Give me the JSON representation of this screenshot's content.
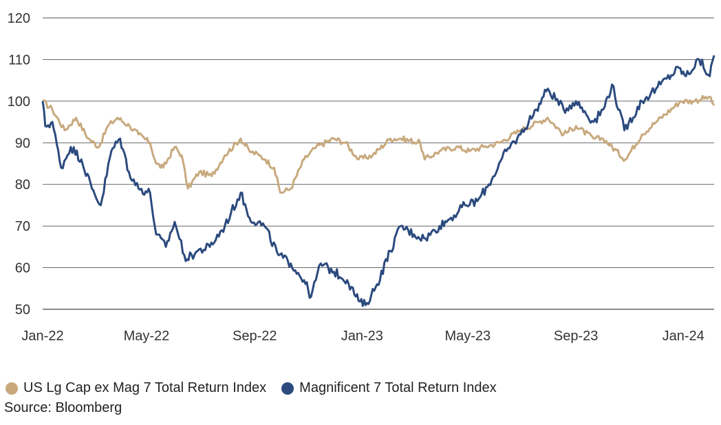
{
  "chart_data": {
    "type": "line",
    "title": "",
    "xlabel": "",
    "ylabel": "",
    "ylim": [
      50,
      120
    ],
    "yticks": [
      "120",
      "110",
      "100",
      "90",
      "80",
      "70",
      "60",
      "50"
    ],
    "xticks": [
      "Jan-22",
      "May-22",
      "Sep-22",
      "Jan-23",
      "May-23",
      "Sep-23",
      "Jan-24"
    ],
    "grid": "horizontal",
    "legend": "bottom-left",
    "series": [
      {
        "name": "US Lg Cap ex Mag 7 Total Return Index",
        "color": "#c8a97e",
        "points": [
          [
            "2022-01-03",
            100
          ],
          [
            "2022-01-14",
            98
          ],
          [
            "2022-01-28",
            93
          ],
          [
            "2022-02-10",
            96
          ],
          [
            "2022-02-24",
            91
          ],
          [
            "2022-03-08",
            89
          ],
          [
            "2022-03-18",
            94
          ],
          [
            "2022-03-29",
            96
          ],
          [
            "2022-04-12",
            94
          ],
          [
            "2022-04-22",
            92
          ],
          [
            "2022-05-05",
            90
          ],
          [
            "2022-05-12",
            85
          ],
          [
            "2022-05-20",
            84
          ],
          [
            "2022-06-02",
            89
          ],
          [
            "2022-06-10",
            87
          ],
          [
            "2022-06-17",
            79
          ],
          [
            "2022-06-30",
            83
          ],
          [
            "2022-07-14",
            82
          ],
          [
            "2022-07-29",
            87
          ],
          [
            "2022-08-16",
            91
          ],
          [
            "2022-08-26",
            88
          ],
          [
            "2022-09-06",
            87
          ],
          [
            "2022-09-13",
            86
          ],
          [
            "2022-09-23",
            84
          ],
          [
            "2022-09-30",
            78
          ],
          [
            "2022-10-12",
            79
          ],
          [
            "2022-10-27",
            86
          ],
          [
            "2022-11-10",
            89
          ],
          [
            "2022-11-30",
            91
          ],
          [
            "2022-12-13",
            90
          ],
          [
            "2022-12-28",
            86
          ],
          [
            "2023-01-13",
            87
          ],
          [
            "2023-02-02",
            91
          ],
          [
            "2023-02-14",
            91
          ],
          [
            "2023-03-08",
            90
          ],
          [
            "2023-03-13",
            86
          ],
          [
            "2023-03-30",
            88
          ],
          [
            "2023-04-18",
            89
          ],
          [
            "2023-05-03",
            88
          ],
          [
            "2023-05-19",
            89
          ],
          [
            "2023-06-06",
            90
          ],
          [
            "2023-06-30",
            93
          ],
          [
            "2023-07-21",
            95
          ],
          [
            "2023-07-31",
            96
          ],
          [
            "2023-08-18",
            92
          ],
          [
            "2023-09-01",
            94
          ],
          [
            "2023-09-21",
            91
          ],
          [
            "2023-10-02",
            91
          ],
          [
            "2023-10-27",
            86
          ],
          [
            "2023-11-15",
            92
          ],
          [
            "2023-12-01",
            95
          ],
          [
            "2023-12-29",
            100
          ],
          [
            "2024-01-12",
            100
          ],
          [
            "2024-01-30",
            101
          ],
          [
            "2024-02-05",
            99
          ]
        ]
      },
      {
        "name": "Magnificent 7 Total Return Index",
        "color": "#2b4a7e",
        "points": [
          [
            "2022-01-03",
            100
          ],
          [
            "2022-01-06",
            94
          ],
          [
            "2022-01-14",
            95
          ],
          [
            "2022-01-24",
            84
          ],
          [
            "2022-02-04",
            89
          ],
          [
            "2022-02-16",
            86
          ],
          [
            "2022-02-28",
            79
          ],
          [
            "2022-03-10",
            75
          ],
          [
            "2022-03-22",
            88
          ],
          [
            "2022-04-01",
            91
          ],
          [
            "2022-04-11",
            83
          ],
          [
            "2022-04-22",
            79
          ],
          [
            "2022-05-05",
            78
          ],
          [
            "2022-05-12",
            68
          ],
          [
            "2022-05-23",
            65
          ],
          [
            "2022-06-02",
            71
          ],
          [
            "2022-06-13",
            63
          ],
          [
            "2022-06-16",
            62
          ],
          [
            "2022-06-28",
            64
          ],
          [
            "2022-07-12",
            65
          ],
          [
            "2022-07-29",
            70
          ],
          [
            "2022-08-16",
            78
          ],
          [
            "2022-08-26",
            72
          ],
          [
            "2022-09-12",
            70
          ],
          [
            "2022-09-28",
            63
          ],
          [
            "2022-10-12",
            61
          ],
          [
            "2022-10-27",
            57
          ],
          [
            "2022-11-04",
            53
          ],
          [
            "2022-11-15",
            61
          ],
          [
            "2022-11-30",
            59
          ],
          [
            "2022-12-15",
            57
          ],
          [
            "2022-12-28",
            52
          ],
          [
            "2023-01-05",
            51
          ],
          [
            "2023-01-18",
            56
          ],
          [
            "2023-02-02",
            64
          ],
          [
            "2023-02-14",
            70
          ],
          [
            "2023-03-01",
            68
          ],
          [
            "2023-03-14",
            67
          ],
          [
            "2023-03-30",
            70
          ],
          [
            "2023-04-12",
            72
          ],
          [
            "2023-04-28",
            75
          ],
          [
            "2023-05-12",
            76
          ],
          [
            "2023-05-25",
            80
          ],
          [
            "2023-06-14",
            88
          ],
          [
            "2023-06-30",
            92
          ],
          [
            "2023-07-18",
            98
          ],
          [
            "2023-07-31",
            103
          ],
          [
            "2023-08-18",
            98
          ],
          [
            "2023-09-01",
            100
          ],
          [
            "2023-09-21",
            95
          ],
          [
            "2023-10-02",
            98
          ],
          [
            "2023-10-12",
            104
          ],
          [
            "2023-10-26",
            93
          ],
          [
            "2023-11-15",
            100
          ],
          [
            "2023-12-01",
            103
          ],
          [
            "2023-12-27",
            108
          ],
          [
            "2024-01-04",
            106
          ],
          [
            "2024-01-19",
            110
          ],
          [
            "2024-01-31",
            106
          ],
          [
            "2024-02-05",
            111
          ]
        ]
      }
    ]
  },
  "footer": {
    "source": "Source: Bloomberg"
  }
}
